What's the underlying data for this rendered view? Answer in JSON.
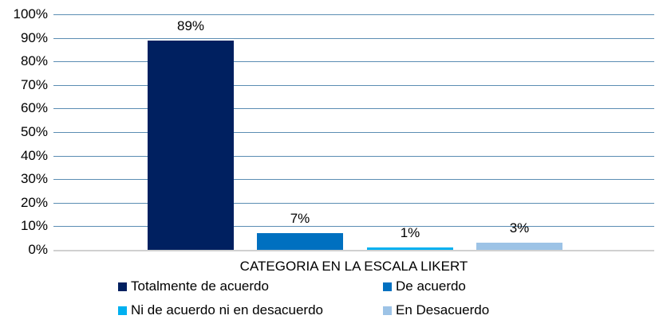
{
  "chart_data": {
    "type": "bar",
    "title": "",
    "xlabel": "CATEGORIA EN LA ESCALA LIKERT",
    "ylabel": "",
    "ylim": [
      0,
      100
    ],
    "yticks": [
      "0%",
      "10%",
      "20%",
      "30%",
      "40%",
      "50%",
      "60%",
      "70%",
      "80%",
      "90%",
      "100%"
    ],
    "grid": true,
    "legend_position": "bottom",
    "categories": [
      "CATEGORIA EN LA ESCALA LIKERT"
    ],
    "series": [
      {
        "name": "Totalmente de acuerdo",
        "values": [
          89
        ],
        "label": "89%",
        "color": "#002060"
      },
      {
        "name": "De acuerdo",
        "values": [
          7
        ],
        "label": "7%",
        "color": "#0070c0"
      },
      {
        "name": "Ni de acuerdo ni en desacuerdo",
        "values": [
          1
        ],
        "label": "1%",
        "color": "#00b0f0"
      },
      {
        "name": "En Desacuerdo",
        "values": [
          3
        ],
        "label": "3%",
        "color": "#9dc3e6"
      }
    ]
  }
}
